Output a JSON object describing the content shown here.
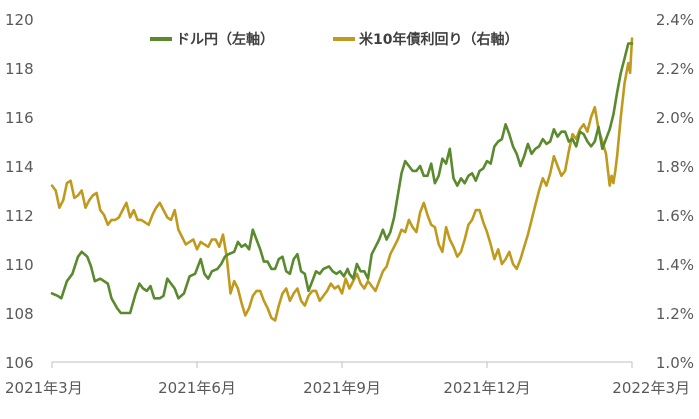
{
  "chart_data": {
    "type": "line",
    "legend_placement": "top-center",
    "grid": false,
    "x_tick_labels": [
      "2021年3月",
      "2021年6月",
      "2021年9月",
      "2021年12月",
      "2022年3月"
    ],
    "y_left": {
      "ticks": [
        "106",
        "108",
        "110",
        "112",
        "114",
        "116",
        "118",
        "120"
      ],
      "ylim": [
        106,
        120
      ]
    },
    "y_right": {
      "ticks": [
        "1.0%",
        "1.2%",
        "1.4%",
        "1.6%",
        "1.8%",
        "2.0%",
        "2.2%",
        "2.4%"
      ],
      "ylim": [
        1.0,
        2.4
      ]
    },
    "x_range_months": [
      0,
      12
    ],
    "series": [
      {
        "name": "ドル円（左軸）",
        "axis": "left",
        "color": "#5a8a2e",
        "points": [
          [
            0.0,
            108.8
          ],
          [
            0.15,
            108.7
          ],
          [
            0.25,
            108.6
          ],
          [
            0.4,
            109.3
          ],
          [
            0.55,
            109.6
          ],
          [
            0.7,
            110.3
          ],
          [
            0.8,
            110.5
          ],
          [
            0.95,
            110.3
          ],
          [
            1.05,
            109.9
          ],
          [
            1.15,
            109.3
          ],
          [
            1.3,
            109.4
          ],
          [
            1.5,
            109.2
          ],
          [
            1.6,
            108.6
          ],
          [
            1.75,
            108.2
          ],
          [
            1.85,
            108.0
          ],
          [
            2.0,
            108.0
          ],
          [
            2.1,
            108.0
          ],
          [
            2.25,
            108.8
          ],
          [
            2.35,
            109.2
          ],
          [
            2.45,
            109.0
          ],
          [
            2.55,
            108.9
          ],
          [
            2.65,
            109.1
          ],
          [
            2.75,
            108.6
          ],
          [
            2.9,
            108.6
          ],
          [
            3.0,
            108.7
          ],
          [
            3.1,
            109.4
          ],
          [
            3.2,
            109.2
          ],
          [
            3.3,
            109.0
          ],
          [
            3.4,
            108.6
          ],
          [
            3.55,
            108.8
          ],
          [
            3.7,
            109.5
          ],
          [
            3.85,
            109.6
          ],
          [
            4.0,
            110.2
          ],
          [
            4.1,
            109.6
          ],
          [
            4.2,
            109.4
          ],
          [
            4.3,
            109.7
          ],
          [
            4.45,
            109.8
          ],
          [
            4.55,
            110.0
          ],
          [
            4.65,
            110.3
          ],
          [
            4.75,
            110.4
          ],
          [
            4.9,
            110.5
          ],
          [
            5.0,
            110.9
          ],
          [
            5.1,
            110.7
          ],
          [
            5.2,
            110.8
          ],
          [
            5.3,
            110.6
          ],
          [
            5.4,
            111.4
          ],
          [
            5.5,
            111.0
          ],
          [
            5.6,
            110.6
          ],
          [
            5.7,
            110.1
          ],
          [
            5.8,
            110.1
          ],
          [
            5.9,
            109.8
          ],
          [
            6.0,
            109.8
          ],
          [
            6.1,
            110.2
          ],
          [
            6.2,
            110.3
          ],
          [
            6.3,
            109.7
          ],
          [
            6.4,
            109.6
          ],
          [
            6.5,
            110.2
          ],
          [
            6.6,
            110.4
          ],
          [
            6.7,
            109.7
          ],
          [
            6.8,
            109.6
          ],
          [
            6.9,
            108.9
          ],
          [
            7.0,
            109.3
          ],
          [
            7.1,
            109.7
          ],
          [
            7.2,
            109.6
          ],
          [
            7.3,
            109.8
          ],
          [
            7.45,
            109.9
          ],
          [
            7.55,
            109.7
          ],
          [
            7.65,
            109.6
          ],
          [
            7.75,
            109.7
          ],
          [
            7.85,
            109.5
          ],
          [
            7.95,
            109.8
          ],
          [
            8.0,
            109.6
          ],
          [
            8.1,
            109.4
          ],
          [
            8.2,
            110.0
          ],
          [
            8.3,
            109.7
          ],
          [
            8.4,
            109.7
          ],
          [
            8.5,
            109.4
          ],
          [
            8.6,
            110.4
          ],
          [
            8.7,
            110.7
          ],
          [
            8.8,
            111.0
          ],
          [
            8.9,
            111.4
          ],
          [
            9.0,
            111.0
          ],
          [
            9.1,
            111.3
          ],
          [
            9.2,
            111.9
          ],
          [
            9.3,
            112.8
          ],
          [
            9.4,
            113.7
          ],
          [
            9.5,
            114.2
          ],
          [
            9.6,
            114.0
          ],
          [
            9.7,
            113.8
          ],
          [
            9.8,
            113.8
          ],
          [
            9.9,
            114.0
          ],
          [
            10.0,
            113.6
          ],
          [
            10.1,
            113.6
          ],
          [
            10.2,
            114.1
          ],
          [
            10.3,
            113.3
          ],
          [
            10.4,
            113.6
          ],
          [
            10.5,
            114.3
          ],
          [
            10.6,
            114.1
          ],
          [
            10.7,
            114.7
          ],
          [
            10.8,
            113.5
          ],
          [
            10.9,
            113.2
          ],
          [
            11.0,
            113.5
          ],
          [
            11.1,
            113.3
          ],
          [
            11.2,
            113.6
          ],
          [
            11.3,
            113.7
          ],
          [
            11.4,
            113.4
          ],
          [
            11.5,
            113.8
          ],
          [
            11.6,
            113.9
          ],
          [
            11.7,
            114.2
          ],
          [
            11.8,
            114.1
          ],
          [
            11.9,
            114.8
          ],
          [
            12.0,
            115.0
          ],
          [
            12.1,
            115.1
          ],
          [
            12.2,
            115.7
          ],
          [
            12.3,
            115.3
          ],
          [
            12.4,
            114.8
          ],
          [
            12.5,
            114.5
          ],
          [
            12.6,
            114.0
          ],
          [
            12.7,
            114.4
          ],
          [
            12.8,
            114.9
          ],
          [
            12.9,
            114.5
          ],
          [
            13.0,
            114.7
          ],
          [
            13.1,
            114.8
          ],
          [
            13.2,
            115.1
          ],
          [
            13.3,
            114.9
          ],
          [
            13.4,
            115.0
          ],
          [
            13.5,
            115.5
          ],
          [
            13.6,
            115.2
          ],
          [
            13.7,
            115.4
          ],
          [
            13.8,
            115.4
          ],
          [
            13.9,
            115.0
          ],
          [
            14.0,
            115.1
          ],
          [
            14.1,
            114.8
          ],
          [
            14.2,
            115.4
          ],
          [
            14.3,
            115.3
          ],
          [
            14.4,
            115.0
          ],
          [
            14.5,
            114.8
          ],
          [
            14.6,
            115.0
          ],
          [
            14.7,
            115.6
          ],
          [
            14.8,
            114.7
          ],
          [
            14.9,
            115.1
          ],
          [
            15.0,
            115.5
          ],
          [
            15.1,
            116.1
          ],
          [
            15.2,
            117.0
          ],
          [
            15.3,
            117.8
          ],
          [
            15.4,
            118.4
          ],
          [
            15.5,
            119.0
          ],
          [
            15.6,
            119.0
          ]
        ]
      },
      {
        "name": "米10年債利回り（右軸）",
        "axis": "right",
        "color": "#c09a1e",
        "points": [
          [
            0.0,
            1.72
          ],
          [
            0.1,
            1.7
          ],
          [
            0.2,
            1.63
          ],
          [
            0.3,
            1.66
          ],
          [
            0.4,
            1.73
          ],
          [
            0.5,
            1.74
          ],
          [
            0.6,
            1.67
          ],
          [
            0.7,
            1.68
          ],
          [
            0.8,
            1.7
          ],
          [
            0.9,
            1.63
          ],
          [
            1.0,
            1.66
          ],
          [
            1.1,
            1.68
          ],
          [
            1.2,
            1.69
          ],
          [
            1.3,
            1.62
          ],
          [
            1.4,
            1.6
          ],
          [
            1.5,
            1.56
          ],
          [
            1.6,
            1.58
          ],
          [
            1.7,
            1.58
          ],
          [
            1.8,
            1.59
          ],
          [
            1.9,
            1.62
          ],
          [
            2.0,
            1.65
          ],
          [
            2.1,
            1.59
          ],
          [
            2.2,
            1.62
          ],
          [
            2.3,
            1.58
          ],
          [
            2.4,
            1.58
          ],
          [
            2.5,
            1.57
          ],
          [
            2.6,
            1.56
          ],
          [
            2.7,
            1.6
          ],
          [
            2.8,
            1.63
          ],
          [
            2.9,
            1.65
          ],
          [
            3.0,
            1.62
          ],
          [
            3.1,
            1.59
          ],
          [
            3.2,
            1.58
          ],
          [
            3.3,
            1.62
          ],
          [
            3.4,
            1.54
          ],
          [
            3.5,
            1.51
          ],
          [
            3.6,
            1.48
          ],
          [
            3.7,
            1.49
          ],
          [
            3.8,
            1.5
          ],
          [
            3.9,
            1.46
          ],
          [
            4.0,
            1.49
          ],
          [
            4.1,
            1.48
          ],
          [
            4.2,
            1.47
          ],
          [
            4.3,
            1.5
          ],
          [
            4.4,
            1.5
          ],
          [
            4.5,
            1.47
          ],
          [
            4.6,
            1.52
          ],
          [
            4.7,
            1.43
          ],
          [
            4.8,
            1.28
          ],
          [
            4.9,
            1.33
          ],
          [
            5.0,
            1.3
          ],
          [
            5.1,
            1.24
          ],
          [
            5.2,
            1.19
          ],
          [
            5.3,
            1.22
          ],
          [
            5.4,
            1.27
          ],
          [
            5.5,
            1.29
          ],
          [
            5.6,
            1.29
          ],
          [
            5.7,
            1.25
          ],
          [
            5.8,
            1.22
          ],
          [
            5.9,
            1.18
          ],
          [
            6.0,
            1.17
          ],
          [
            6.1,
            1.23
          ],
          [
            6.2,
            1.28
          ],
          [
            6.3,
            1.3
          ],
          [
            6.4,
            1.25
          ],
          [
            6.5,
            1.28
          ],
          [
            6.6,
            1.3
          ],
          [
            6.7,
            1.25
          ],
          [
            6.8,
            1.23
          ],
          [
            6.9,
            1.27
          ],
          [
            7.0,
            1.29
          ],
          [
            7.1,
            1.29
          ],
          [
            7.2,
            1.25
          ],
          [
            7.3,
            1.27
          ],
          [
            7.4,
            1.29
          ],
          [
            7.5,
            1.32
          ],
          [
            7.6,
            1.3
          ],
          [
            7.7,
            1.31
          ],
          [
            7.8,
            1.28
          ],
          [
            7.9,
            1.34
          ],
          [
            8.0,
            1.3
          ],
          [
            8.1,
            1.33
          ],
          [
            8.2,
            1.36
          ],
          [
            8.3,
            1.32
          ],
          [
            8.4,
            1.3
          ],
          [
            8.5,
            1.33
          ],
          [
            8.6,
            1.31
          ],
          [
            8.7,
            1.29
          ],
          [
            8.8,
            1.33
          ],
          [
            8.9,
            1.37
          ],
          [
            9.0,
            1.39
          ],
          [
            9.1,
            1.44
          ],
          [
            9.2,
            1.47
          ],
          [
            9.3,
            1.5
          ],
          [
            9.4,
            1.54
          ],
          [
            9.5,
            1.53
          ],
          [
            9.6,
            1.58
          ],
          [
            9.7,
            1.55
          ],
          [
            9.8,
            1.53
          ],
          [
            9.9,
            1.61
          ],
          [
            10.0,
            1.65
          ],
          [
            10.1,
            1.6
          ],
          [
            10.2,
            1.56
          ],
          [
            10.3,
            1.55
          ],
          [
            10.4,
            1.48
          ],
          [
            10.5,
            1.45
          ],
          [
            10.6,
            1.55
          ],
          [
            10.7,
            1.5
          ],
          [
            10.8,
            1.47
          ],
          [
            10.9,
            1.43
          ],
          [
            11.0,
            1.45
          ],
          [
            11.1,
            1.5
          ],
          [
            11.2,
            1.56
          ],
          [
            11.3,
            1.58
          ],
          [
            11.4,
            1.62
          ],
          [
            11.5,
            1.62
          ],
          [
            11.6,
            1.57
          ],
          [
            11.7,
            1.53
          ],
          [
            11.8,
            1.48
          ],
          [
            11.9,
            1.42
          ],
          [
            12.0,
            1.46
          ],
          [
            12.1,
            1.4
          ],
          [
            12.2,
            1.42
          ],
          [
            12.3,
            1.45
          ],
          [
            12.4,
            1.4
          ],
          [
            12.5,
            1.38
          ],
          [
            12.6,
            1.42
          ],
          [
            12.7,
            1.47
          ],
          [
            12.8,
            1.52
          ],
          [
            12.9,
            1.58
          ],
          [
            13.0,
            1.64
          ],
          [
            13.1,
            1.7
          ],
          [
            13.2,
            1.75
          ],
          [
            13.3,
            1.72
          ],
          [
            13.4,
            1.77
          ],
          [
            13.5,
            1.84
          ],
          [
            13.6,
            1.8
          ],
          [
            13.7,
            1.76
          ],
          [
            13.8,
            1.78
          ],
          [
            13.9,
            1.86
          ],
          [
            14.0,
            1.93
          ],
          [
            14.1,
            1.91
          ],
          [
            14.2,
            1.95
          ],
          [
            14.3,
            1.97
          ],
          [
            14.4,
            1.94
          ],
          [
            14.5,
            2.0
          ],
          [
            14.6,
            2.04
          ],
          [
            14.7,
            1.95
          ],
          [
            14.8,
            1.9
          ],
          [
            14.9,
            1.85
          ],
          [
            15.0,
            1.72
          ],
          [
            15.05,
            1.76
          ],
          [
            15.1,
            1.73
          ],
          [
            15.15,
            1.78
          ],
          [
            15.2,
            1.84
          ],
          [
            15.3,
            2.0
          ],
          [
            15.4,
            2.14
          ],
          [
            15.5,
            2.22
          ],
          [
            15.55,
            2.18
          ],
          [
            15.6,
            2.32
          ]
        ]
      }
    ]
  }
}
